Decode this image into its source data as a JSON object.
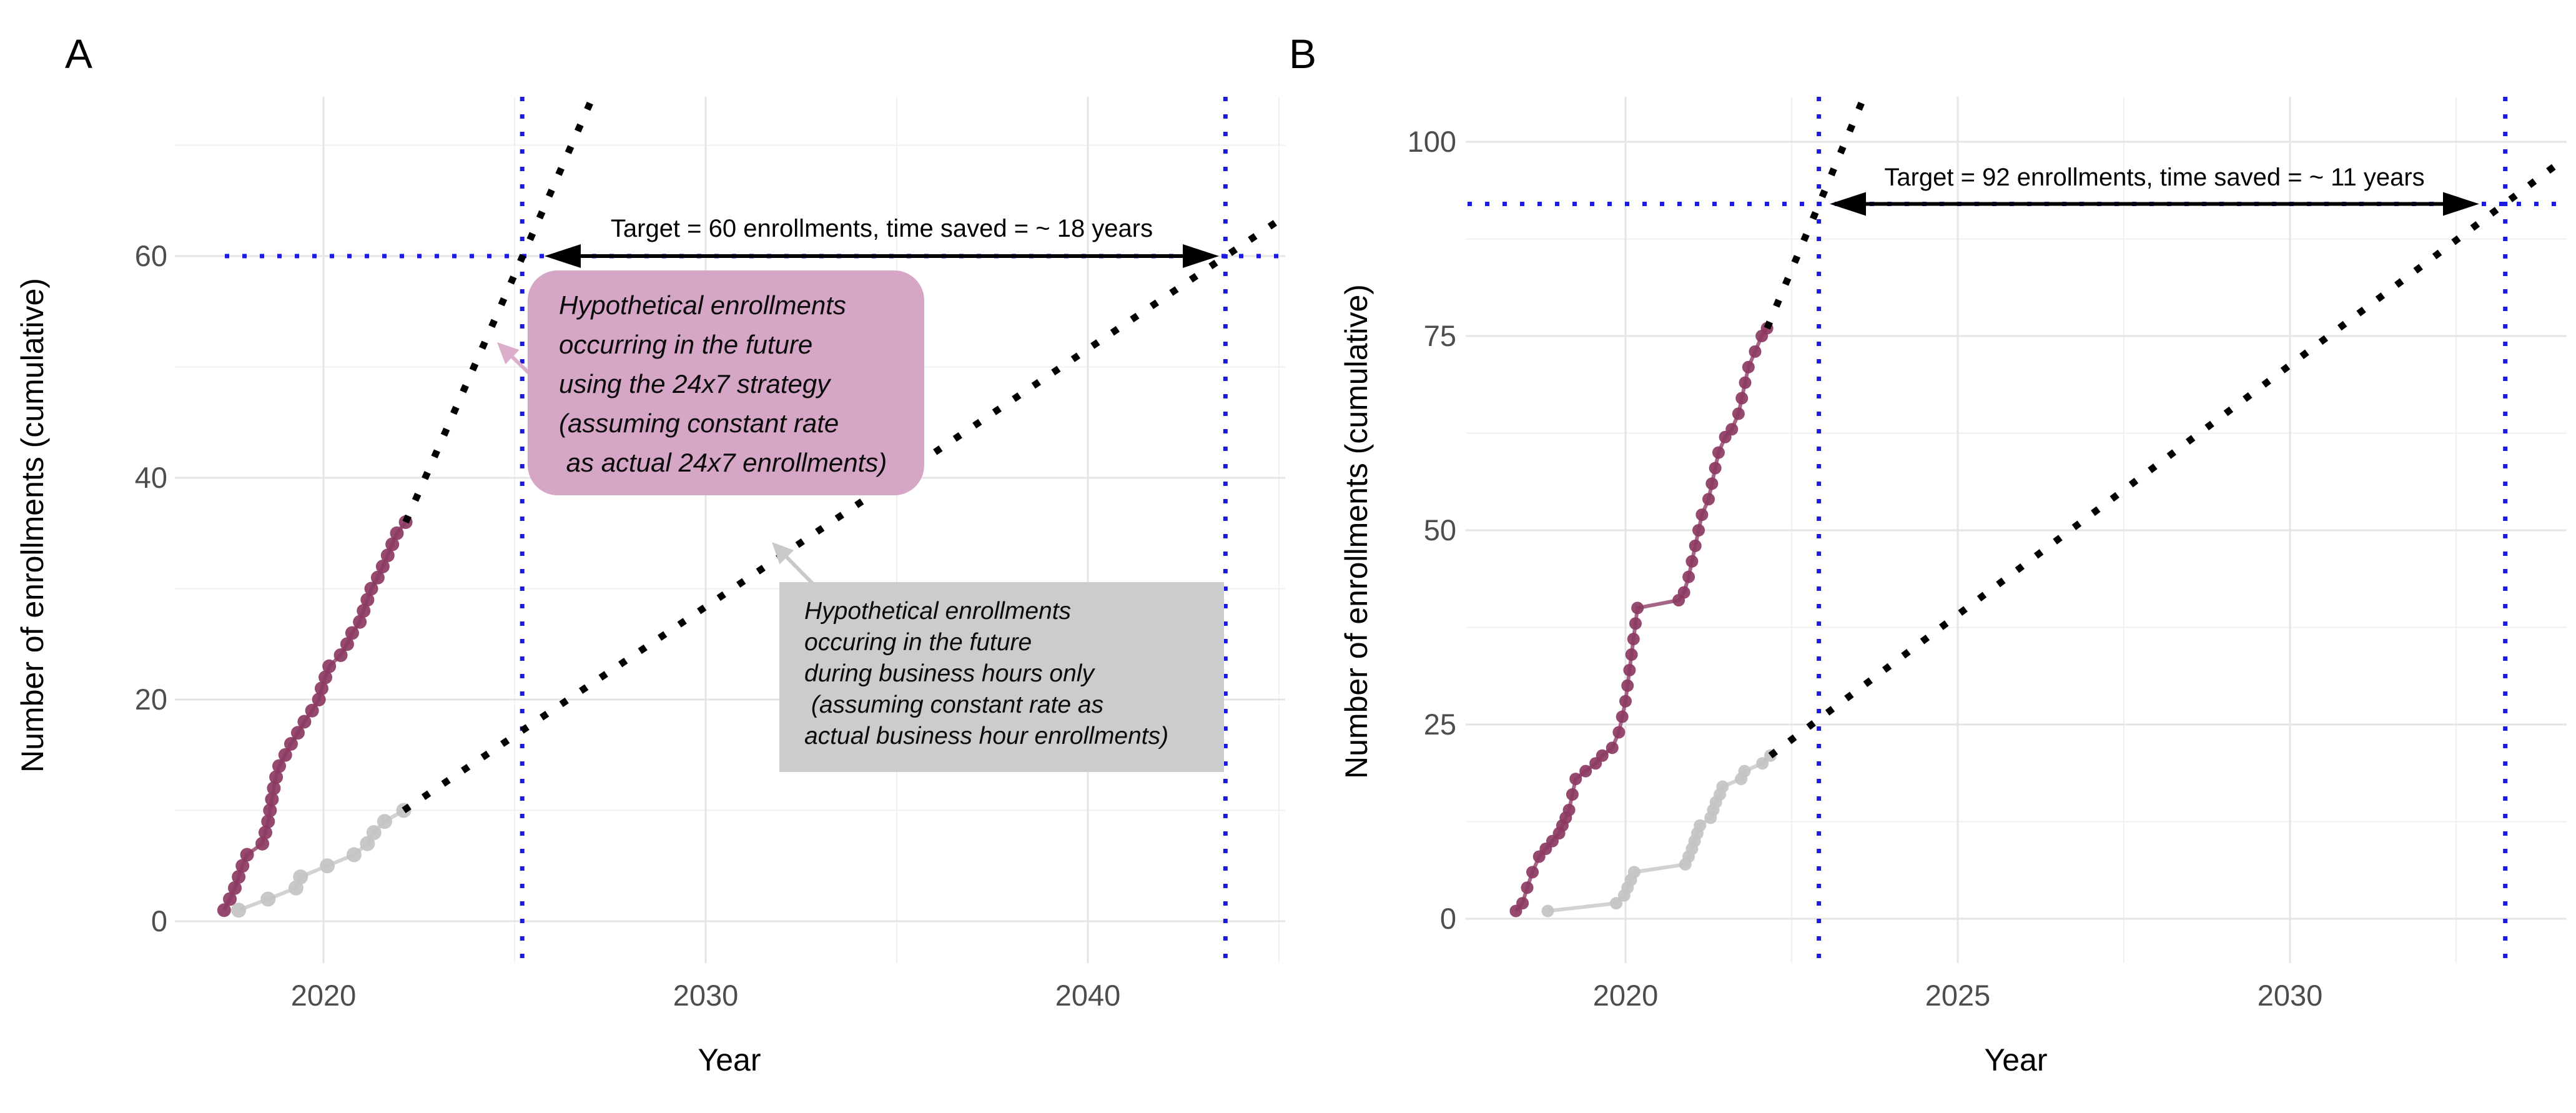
{
  "figure_type": "two-panel cumulative enrollment projection figure",
  "chart_data": [
    {
      "type": "line",
      "panel_label": "A",
      "xlabel": "Year",
      "ylabel": "Number of enrollments (cumulative)",
      "x_ticks": [
        2020,
        2030,
        2040
      ],
      "x_minor_ticks": [
        2025,
        2035,
        2045
      ],
      "y_ticks": [
        0,
        20,
        40,
        60
      ],
      "y_minor_ticks": [
        10,
        30,
        50,
        70
      ],
      "xlim": [
        2016.2,
        2045.2
      ],
      "ylim": [
        -3.6,
        74.4
      ],
      "grid": true,
      "legend": "none",
      "target": {
        "enrollments": 60,
        "label": "Target = 60 enrollments, time saved = ~ 18 years",
        "hline_y": 60,
        "vline_24x7_year": 2025.2,
        "vline_business_year": 2043.6,
        "line_color": "#1a1ae0"
      },
      "series": [
        {
          "name": "actual-24x7-enrollments",
          "style": "solid-markers",
          "color": "#8c3a62",
          "line_color": "#a05b80",
          "points": [
            [
              2017.4,
              1
            ],
            [
              2017.55,
              2
            ],
            [
              2017.68,
              3
            ],
            [
              2017.78,
              4
            ],
            [
              2017.88,
              5
            ],
            [
              2018.0,
              6
            ],
            [
              2018.4,
              7
            ],
            [
              2018.48,
              8
            ],
            [
              2018.55,
              9
            ],
            [
              2018.6,
              10
            ],
            [
              2018.65,
              11
            ],
            [
              2018.7,
              12
            ],
            [
              2018.76,
              13
            ],
            [
              2018.84,
              14
            ],
            [
              2019.0,
              15
            ],
            [
              2019.15,
              16
            ],
            [
              2019.33,
              17
            ],
            [
              2019.5,
              18
            ],
            [
              2019.7,
              19
            ],
            [
              2019.88,
              20
            ],
            [
              2019.95,
              21
            ],
            [
              2020.05,
              22
            ],
            [
              2020.15,
              23
            ],
            [
              2020.45,
              24
            ],
            [
              2020.62,
              25
            ],
            [
              2020.75,
              26
            ],
            [
              2020.95,
              27
            ],
            [
              2021.05,
              28
            ],
            [
              2021.15,
              29
            ],
            [
              2021.25,
              30
            ],
            [
              2021.42,
              31
            ],
            [
              2021.55,
              32
            ],
            [
              2021.68,
              33
            ],
            [
              2021.8,
              34
            ],
            [
              2021.92,
              35
            ],
            [
              2022.15,
              36
            ]
          ]
        },
        {
          "name": "actual-business-hours-enrollments",
          "style": "solid-markers",
          "color": "#c3c3c3",
          "line_color": "#d0d0d0",
          "points": [
            [
              2017.78,
              1
            ],
            [
              2018.55,
              2
            ],
            [
              2019.28,
              3
            ],
            [
              2019.4,
              4
            ],
            [
              2020.1,
              5
            ],
            [
              2020.8,
              6
            ],
            [
              2021.15,
              7
            ],
            [
              2021.32,
              8
            ],
            [
              2021.6,
              9
            ],
            [
              2022.1,
              10
            ]
          ]
        },
        {
          "name": "projection-24x7",
          "style": "dotted",
          "color": "#000000",
          "points": [
            [
              2022.15,
              36
            ],
            [
              2027.0,
              74
            ]
          ]
        },
        {
          "name": "projection-business-hours",
          "style": "dotted",
          "color": "#000000",
          "points": [
            [
              2022.1,
              10
            ],
            [
              2044.9,
              63
            ]
          ]
        }
      ],
      "annotations": [
        {
          "id": "hypothetical-24x7-box",
          "bg": "#d6a6c6",
          "lines": [
            "Hypothetical enrollments",
            "occurring in the future",
            "using the 24x7 strategy",
            "(assuming constant rate",
            " as actual 24x7 enrollments)"
          ]
        },
        {
          "id": "hypothetical-business-box",
          "bg": "#cccccc",
          "lines": [
            "Hypothetical enrollments",
            "occuring in the future",
            "during business hours only",
            " (assuming constant rate as",
            "actual business hour enrollments)"
          ]
        }
      ]
    },
    {
      "type": "line",
      "panel_label": "B",
      "xlabel": "Year",
      "ylabel": "Number of enrollments (cumulative)",
      "x_ticks": [
        2020,
        2025,
        2030
      ],
      "x_minor_ticks": [
        2017.5,
        2022.5,
        2027.5,
        2032.5
      ],
      "y_ticks": [
        0,
        25,
        50,
        75,
        100
      ],
      "y_minor_ticks": [
        12.5,
        37.5,
        62.5,
        87.5
      ],
      "xlim": [
        2017.6,
        2034.2
      ],
      "ylim": [
        -5.7,
        105.8
      ],
      "grid": true,
      "legend": "none",
      "target": {
        "enrollments": 92,
        "label": "Target = 92 enrollments, time saved = ~ 11 years",
        "hline_y": 92,
        "vline_24x7_year": 2022.91,
        "vline_business_year": 2033.24,
        "line_color": "#1a1ae0"
      },
      "series": [
        {
          "name": "actual-24x7-enrollments",
          "style": "solid-markers",
          "color": "#8c3a62",
          "line_color": "#a05b80",
          "points": [
            [
              2018.35,
              1
            ],
            [
              2018.45,
              2
            ],
            [
              2018.52,
              4
            ],
            [
              2018.6,
              6
            ],
            [
              2018.7,
              8
            ],
            [
              2018.8,
              9
            ],
            [
              2018.9,
              10
            ],
            [
              2019.0,
              11
            ],
            [
              2019.05,
              12
            ],
            [
              2019.1,
              13
            ],
            [
              2019.15,
              14
            ],
            [
              2019.2,
              16
            ],
            [
              2019.25,
              18
            ],
            [
              2019.4,
              19
            ],
            [
              2019.55,
              20
            ],
            [
              2019.65,
              21
            ],
            [
              2019.8,
              22
            ],
            [
              2019.9,
              24
            ],
            [
              2019.95,
              26
            ],
            [
              2020.0,
              28
            ],
            [
              2020.03,
              30
            ],
            [
              2020.06,
              32
            ],
            [
              2020.09,
              34
            ],
            [
              2020.12,
              36
            ],
            [
              2020.15,
              38
            ],
            [
              2020.18,
              40
            ],
            [
              2020.8,
              41
            ],
            [
              2020.88,
              42
            ],
            [
              2020.95,
              44
            ],
            [
              2021.0,
              46
            ],
            [
              2021.05,
              48
            ],
            [
              2021.1,
              50
            ],
            [
              2021.15,
              52
            ],
            [
              2021.25,
              54
            ],
            [
              2021.3,
              56
            ],
            [
              2021.35,
              58
            ],
            [
              2021.4,
              60
            ],
            [
              2021.5,
              62
            ],
            [
              2021.6,
              63
            ],
            [
              2021.7,
              65
            ],
            [
              2021.75,
              67
            ],
            [
              2021.8,
              69
            ],
            [
              2021.85,
              71
            ],
            [
              2021.95,
              73
            ],
            [
              2022.05,
              75
            ],
            [
              2022.13,
              76
            ]
          ]
        },
        {
          "name": "actual-business-hours-enrollments",
          "style": "solid-markers",
          "color": "#c3c3c3",
          "line_color": "#d0d0d0",
          "points": [
            [
              2018.83,
              1
            ],
            [
              2019.86,
              2
            ],
            [
              2019.98,
              3
            ],
            [
              2020.03,
              4
            ],
            [
              2020.08,
              5
            ],
            [
              2020.13,
              6
            ],
            [
              2020.9,
              7
            ],
            [
              2020.95,
              8
            ],
            [
              2021.0,
              9
            ],
            [
              2021.04,
              10
            ],
            [
              2021.08,
              11
            ],
            [
              2021.12,
              12
            ],
            [
              2021.28,
              13
            ],
            [
              2021.32,
              14
            ],
            [
              2021.36,
              15
            ],
            [
              2021.42,
              16
            ],
            [
              2021.46,
              17
            ],
            [
              2021.74,
              18
            ],
            [
              2021.79,
              19
            ],
            [
              2022.06,
              20
            ],
            [
              2022.18,
              21
            ]
          ]
        },
        {
          "name": "projection-24x7",
          "style": "dotted",
          "color": "#000000",
          "points": [
            [
              2022.13,
              76
            ],
            [
              2023.6,
              106
            ]
          ]
        },
        {
          "name": "projection-business-hours",
          "style": "dotted",
          "color": "#000000",
          "points": [
            [
              2022.18,
              21
            ],
            [
              2034.16,
              98
            ]
          ]
        }
      ],
      "annotations": []
    }
  ],
  "colors": {
    "maroon_series": "#8c3a62",
    "gray_series": "#c3c3c3",
    "projection_black": "#000000",
    "target_blue": "#1a1ae0",
    "pink_annotation_bg": "#d6a6c6",
    "gray_annotation_bg": "#cccccc"
  }
}
